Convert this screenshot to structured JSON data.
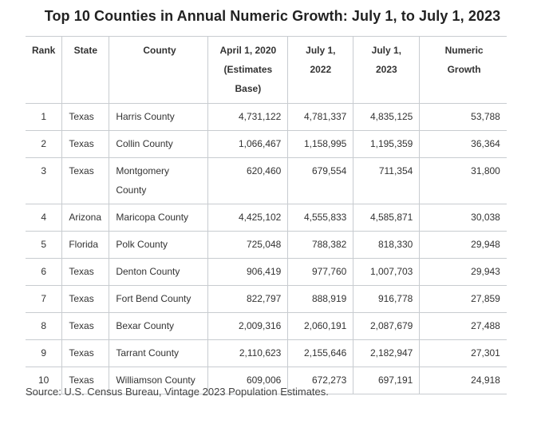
{
  "title": "Top 10 Counties in Annual Numeric Growth: July 1, to July 1, 2023",
  "headers": {
    "rank": "Rank",
    "state": "State",
    "county": "County",
    "april_2020": "April 1, 2020 (Estimates Base)",
    "july_2022": "July 1, 2022",
    "july_2023": "July 1, 2023",
    "growth": "Numeric Growth"
  },
  "rows": [
    {
      "rank": "1",
      "state": "Texas",
      "county": "Harris County",
      "april_2020": "4,731,122",
      "july_2022": "4,781,337",
      "july_2023": "4,835,125",
      "growth": "53,788"
    },
    {
      "rank": "2",
      "state": "Texas",
      "county": "Collin County",
      "april_2020": "1,066,467",
      "july_2022": "1,158,995",
      "july_2023": "1,195,359",
      "growth": "36,364"
    },
    {
      "rank": "3",
      "state": "Texas",
      "county": "Montgomery County",
      "april_2020": "620,460",
      "july_2022": "679,554",
      "july_2023": "711,354",
      "growth": "31,800"
    },
    {
      "rank": "4",
      "state": "Arizona",
      "county": "Maricopa County",
      "april_2020": "4,425,102",
      "july_2022": "4,555,833",
      "july_2023": "4,585,871",
      "growth": "30,038"
    },
    {
      "rank": "5",
      "state": "Florida",
      "county": "Polk County",
      "april_2020": "725,048",
      "july_2022": "788,382",
      "july_2023": "818,330",
      "growth": "29,948"
    },
    {
      "rank": "6",
      "state": "Texas",
      "county": "Denton County",
      "april_2020": "906,419",
      "july_2022": "977,760",
      "july_2023": "1,007,703",
      "growth": "29,943"
    },
    {
      "rank": "7",
      "state": "Texas",
      "county": "Fort Bend County",
      "april_2020": "822,797",
      "july_2022": "888,919",
      "july_2023": "916,778",
      "growth": "27,859"
    },
    {
      "rank": "8",
      "state": "Texas",
      "county": "Bexar County",
      "april_2020": "2,009,316",
      "july_2022": "2,060,191",
      "july_2023": "2,087,679",
      "growth": "27,488"
    },
    {
      "rank": "9",
      "state": "Texas",
      "county": "Tarrant County",
      "april_2020": "2,110,623",
      "july_2022": "2,155,646",
      "july_2023": "2,182,947",
      "growth": "27,301"
    },
    {
      "rank": "10",
      "state": "Texas",
      "county": "Williamson County",
      "april_2020": "609,006",
      "july_2022": "672,273",
      "july_2023": "697,191",
      "growth": "24,918"
    }
  ],
  "source": "Source: U.S. Census Bureau, Vintage 2023 Population Estimates."
}
